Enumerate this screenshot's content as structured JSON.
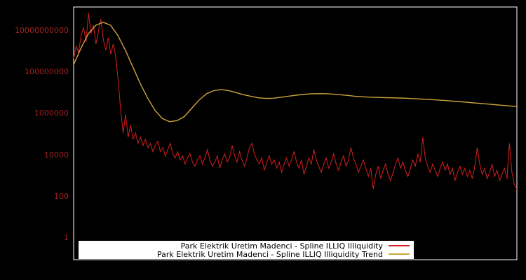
{
  "chart_data": {
    "type": "line",
    "title": "",
    "x_axis": {
      "tick_labels": []
    },
    "y_axis": {
      "scale": "log",
      "tick_labels": [
        "10000000000",
        "100000000",
        "1000000",
        "10000",
        "100",
        "1"
      ],
      "tick_values": [
        10000000000,
        100000000,
        1000000,
        10000,
        100,
        1
      ],
      "tick_log10": [
        10,
        8,
        6,
        4,
        2,
        0
      ]
    },
    "ylim_log10": [
      -1.0,
      11.2
    ],
    "grid": false,
    "legend": {
      "position": "bottom-center",
      "background": "#ffffff",
      "text_color": "#000000"
    },
    "series": [
      {
        "name": "Park Elektrik Uretim Madenci - Spline ILLIQ Illiquidity",
        "color": "#d41f1f",
        "log10_values": [
          8.7,
          9.3,
          9.0,
          9.8,
          10.2,
          9.5,
          10.9,
          9.9,
          10.3,
          9.4,
          10.0,
          10.6,
          9.6,
          9.1,
          9.7,
          8.9,
          9.4,
          8.8,
          7.6,
          6.2,
          5.1,
          6.0,
          4.9,
          5.5,
          4.8,
          5.1,
          4.6,
          4.9,
          4.5,
          4.8,
          4.4,
          4.6,
          4.2,
          4.5,
          4.7,
          4.2,
          4.4,
          4.0,
          4.3,
          4.6,
          4.1,
          3.9,
          4.2,
          3.8,
          4.0,
          3.6,
          3.9,
          4.1,
          3.7,
          3.5,
          3.8,
          4.0,
          3.6,
          3.9,
          4.3,
          3.8,
          3.5,
          3.7,
          4.0,
          3.4,
          3.8,
          4.1,
          3.7,
          3.9,
          4.5,
          4.0,
          3.7,
          4.2,
          3.8,
          3.5,
          3.9,
          4.4,
          4.6,
          4.1,
          3.8,
          3.6,
          3.9,
          3.3,
          3.7,
          4.0,
          3.6,
          3.8,
          3.4,
          3.7,
          3.2,
          3.6,
          3.9,
          3.5,
          3.8,
          4.2,
          3.7,
          3.4,
          3.8,
          3.1,
          3.5,
          3.9,
          3.6,
          4.3,
          3.8,
          3.5,
          3.2,
          3.6,
          3.9,
          3.4,
          3.7,
          4.1,
          3.6,
          3.3,
          3.7,
          4.0,
          3.5,
          3.8,
          4.4,
          3.9,
          3.6,
          3.2,
          3.5,
          3.8,
          3.4,
          3.0,
          3.4,
          2.4,
          3.1,
          3.5,
          2.9,
          3.3,
          3.6,
          3.1,
          2.8,
          3.2,
          3.6,
          3.9,
          3.4,
          3.7,
          3.3,
          3.0,
          3.4,
          3.8,
          3.5,
          4.1,
          3.7,
          4.9,
          3.9,
          3.5,
          3.2,
          3.6,
          3.3,
          3.0,
          3.4,
          3.7,
          3.3,
          3.6,
          3.1,
          3.4,
          2.8,
          3.2,
          3.5,
          3.1,
          3.4,
          3.0,
          3.3,
          2.9,
          3.5,
          4.4,
          3.6,
          3.1,
          3.4,
          2.9,
          3.2,
          3.6,
          3.0,
          3.3,
          2.8,
          3.1,
          3.4,
          2.9,
          4.6,
          3.2,
          2.6,
          2.4
        ]
      },
      {
        "name": "Park Elektrik Uretim Madenci - Spline ILLIQ Illiquidity Trend",
        "color": "#cfa43c",
        "log10_values": [
          8.4,
          9.2,
          9.9,
          10.3,
          10.45,
          10.3,
          9.8,
          9.1,
          8.3,
          7.5,
          6.8,
          6.2,
          5.8,
          5.65,
          5.7,
          5.9,
          6.3,
          6.7,
          7.0,
          7.15,
          7.2,
          7.15,
          7.05,
          6.95,
          6.87,
          6.8,
          6.77,
          6.78,
          6.82,
          6.87,
          6.92,
          6.96,
          6.99,
          7.0,
          7.0,
          6.98,
          6.95,
          6.92,
          6.88,
          6.85,
          6.83,
          6.82,
          6.81,
          6.8,
          6.79,
          6.78,
          6.76,
          6.74,
          6.72,
          6.7,
          6.68,
          6.65,
          6.62,
          6.59,
          6.56,
          6.53,
          6.5,
          6.47,
          6.44,
          6.41,
          6.38
        ]
      }
    ]
  },
  "colors": {
    "background": "#000000",
    "plot_border": "#ffffff",
    "axis_label_color": "#a32020"
  }
}
